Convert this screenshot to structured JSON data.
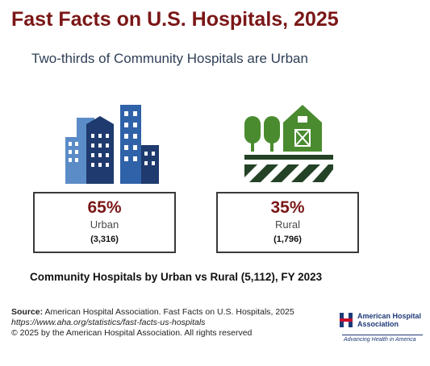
{
  "title": "Fast Facts on U.S. Hospitals, 2025",
  "subtitle": "Two-thirds of Community Hospitals are Urban",
  "colors": {
    "title": "#7b1717",
    "pct": "#7b1717",
    "urban_icon": "#1e3a6e",
    "urban_icon_light": "#5b8cc7",
    "rural_icon": "#4a8b2f",
    "rural_icon_dark": "#244226"
  },
  "urban": {
    "percent": "65%",
    "label": "Urban",
    "count": "(3,316)",
    "icon": "city-buildings-icon"
  },
  "rural": {
    "percent": "35%",
    "label": "Rural",
    "count": "(1,796)",
    "icon": "farm-barn-icon"
  },
  "caption": "Community Hospitals by Urban vs Rural (5,112), FY 2023",
  "footer": {
    "source_label": "Source:",
    "source_text": "American Hospital Association.  Fast Facts on U.S. Hospitals, 2025",
    "url": "https://www.aha.org/statistics/fast-facts-us-hospitals",
    "copyright": "© 2025 by the American Hospital Association. All rights reserved"
  },
  "logo": {
    "name": "American Hospital Association",
    "tagline": "Advancing Health in America",
    "icon": "aha-h-logo-icon"
  }
}
